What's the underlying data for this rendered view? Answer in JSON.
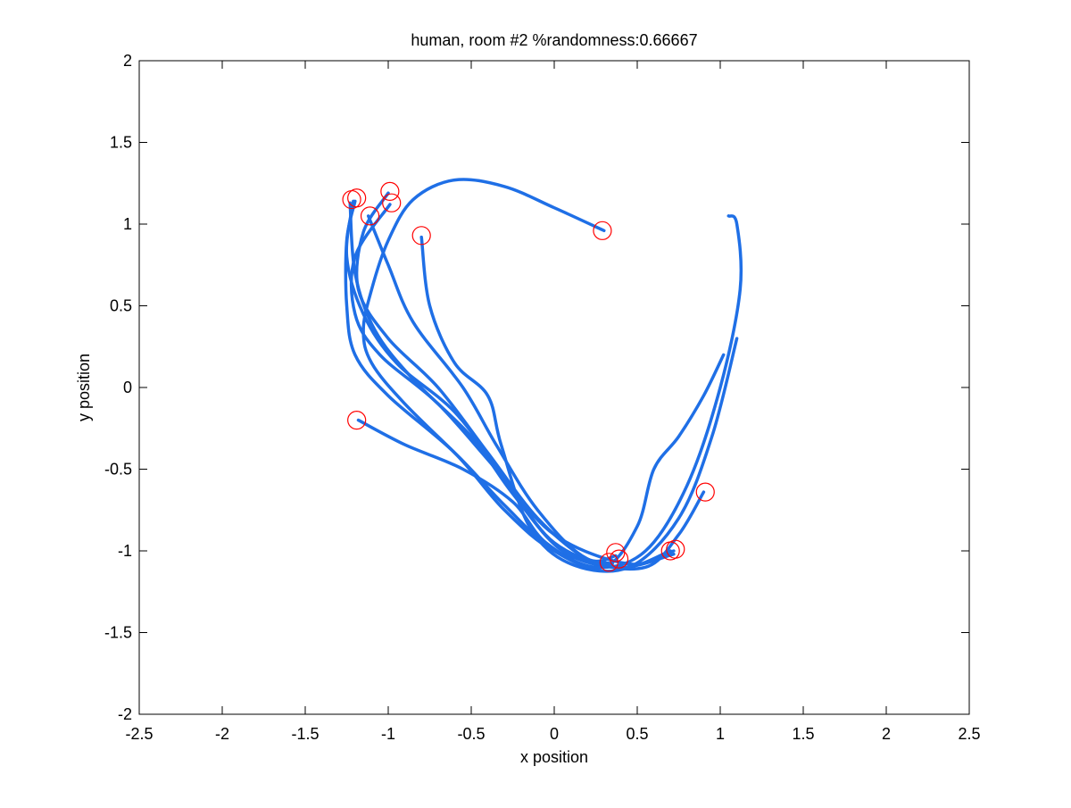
{
  "chart_data": {
    "type": "line",
    "title": "human, room #2 %randomness:0.66667",
    "xlabel": "x position",
    "ylabel": "y position",
    "xlim": [
      -2.5,
      2.5
    ],
    "ylim": [
      -2,
      2
    ],
    "xticks": [
      -2.5,
      -2,
      -1.5,
      -1,
      -0.5,
      0,
      0.5,
      1,
      1.5,
      2,
      2.5
    ],
    "yticks": [
      -2,
      -1.5,
      -1,
      -0.5,
      0,
      0.5,
      1,
      1.5,
      2
    ],
    "xtick_labels": [
      "-2.5",
      "-2",
      "-1.5",
      "-1",
      "-0.5",
      "0",
      "0.5",
      "1",
      "1.5",
      "2",
      "2.5"
    ],
    "ytick_labels": [
      "-2",
      "-1.5",
      "-1",
      "-0.5",
      "0",
      "0.5",
      "1",
      "1.5",
      "2"
    ],
    "grid": false,
    "line_color": "#1f6fe6",
    "marker_color": "#ff0000",
    "series": [
      {
        "x": [
          -1.2,
          -1.25,
          -1.25,
          -1.2,
          -1.0,
          -0.6,
          -0.3,
          0.0,
          0.35
        ],
        "y": [
          1.14,
          0.9,
          0.5,
          0.2,
          -0.05,
          -0.4,
          -0.75,
          -1.0,
          -1.08
        ]
      },
      {
        "x": [
          -1.21,
          -1.25,
          -1.15,
          -0.95,
          -0.6,
          -0.3,
          0.0,
          0.4,
          0.7
        ],
        "y": [
          1.14,
          0.8,
          0.45,
          0.15,
          -0.15,
          -0.55,
          -0.95,
          -1.1,
          -1.0
        ]
      },
      {
        "x": [
          -1.23,
          -1.2,
          -1.08,
          -0.85,
          -0.5,
          -0.25,
          0.05,
          0.4,
          0.72
        ],
        "y": [
          1.13,
          0.7,
          0.35,
          0.05,
          -0.3,
          -0.65,
          -1.0,
          -1.1,
          -1.02
        ]
      },
      {
        "x": [
          -1.0,
          -1.15,
          -1.18,
          -1.0,
          -0.7,
          -0.4,
          -0.1,
          0.2,
          0.37
        ],
        "y": [
          1.19,
          0.95,
          0.6,
          0.3,
          0.0,
          -0.4,
          -0.8,
          -1.05,
          -1.03
        ]
      },
      {
        "x": [
          -0.99,
          -1.2,
          -1.2,
          -1.05,
          -0.7,
          -0.35,
          0.0,
          0.45,
          0.72
        ],
        "y": [
          1.12,
          0.8,
          0.45,
          0.2,
          -0.1,
          -0.5,
          -0.9,
          -1.08,
          -1.0
        ]
      },
      {
        "x": [
          -1.12,
          -1.0,
          -0.85,
          -0.55,
          -0.35,
          -0.1,
          0.2,
          0.55,
          0.75,
          0.9
        ],
        "y": [
          1.05,
          0.75,
          0.4,
          0.0,
          -0.35,
          -0.75,
          -1.05,
          -1.1,
          -0.9,
          -0.64
        ]
      },
      {
        "x": [
          -0.8,
          -0.75,
          -0.6,
          -0.4,
          -0.32,
          -0.15,
          0.1,
          0.45,
          0.75,
          0.95,
          1.1
        ],
        "y": [
          0.92,
          0.5,
          0.15,
          -0.05,
          -0.35,
          -0.85,
          -1.08,
          -1.1,
          -0.8,
          -0.3,
          0.3
        ]
      },
      {
        "x": [
          -1.18,
          -0.9,
          -0.55,
          -0.25,
          -0.05,
          0.25,
          0.55,
          0.8,
          1.0,
          1.12,
          1.1,
          1.05
        ],
        "y": [
          -0.2,
          -0.35,
          -0.5,
          -0.7,
          -0.95,
          -1.1,
          -1.0,
          -0.6,
          0.0,
          0.6,
          1.0,
          1.05
        ]
      },
      {
        "x": [
          0.3,
          0.0,
          -0.3,
          -0.6,
          -0.85,
          -1.0,
          -1.1,
          -1.15,
          -1.1,
          -0.9,
          -0.55,
          -0.3,
          0.0,
          0.3,
          0.5,
          0.6,
          0.75,
          0.9,
          1.02
        ],
        "y": [
          0.96,
          1.1,
          1.23,
          1.27,
          1.15,
          0.9,
          0.6,
          0.35,
          0.15,
          -0.1,
          -0.45,
          -0.72,
          -1.0,
          -1.1,
          -0.85,
          -0.5,
          -0.3,
          -0.05,
          0.2
        ]
      }
    ],
    "markers": {
      "x": [
        -1.22,
        -1.19,
        -1.11,
        -0.99,
        -0.98,
        -0.8,
        0.29,
        -1.19,
        0.91,
        0.33,
        0.37,
        0.39,
        0.7,
        0.73
      ],
      "y": [
        1.15,
        1.16,
        1.05,
        1.2,
        1.13,
        0.93,
        0.96,
        -0.2,
        -0.64,
        -1.07,
        -1.01,
        -1.05,
        -1.0,
        -0.99
      ]
    }
  }
}
